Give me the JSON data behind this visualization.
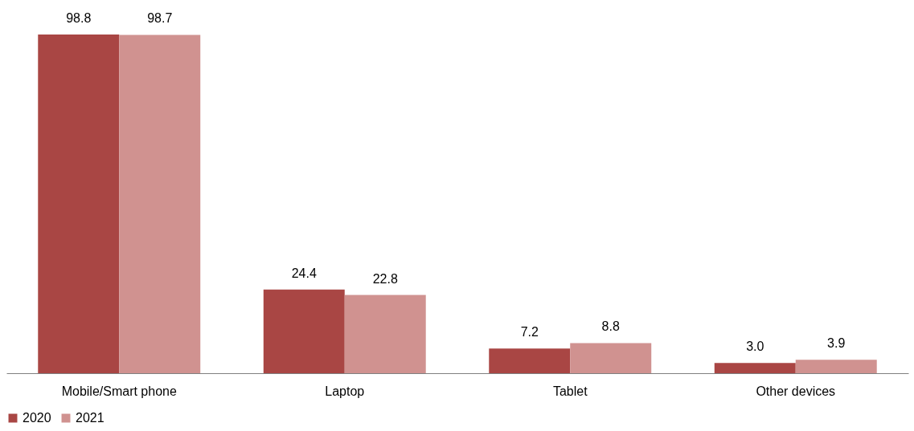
{
  "chart_data": {
    "type": "bar",
    "categories": [
      "Mobile/Smart phone",
      "Laptop",
      "Tablet",
      "Other devices"
    ],
    "series": [
      {
        "name": "2020",
        "color": "#a94644",
        "values": [
          98.8,
          24.4,
          7.2,
          3.0
        ],
        "value_labels": [
          "98.8",
          "24.4",
          "7.2",
          "3.0"
        ]
      },
      {
        "name": "2021",
        "color": "#d09290",
        "values": [
          98.7,
          22.8,
          8.8,
          3.9
        ],
        "value_labels": [
          "98.7",
          "22.8",
          "8.8",
          "3.9"
        ]
      }
    ],
    "legend": "bottom"
  }
}
